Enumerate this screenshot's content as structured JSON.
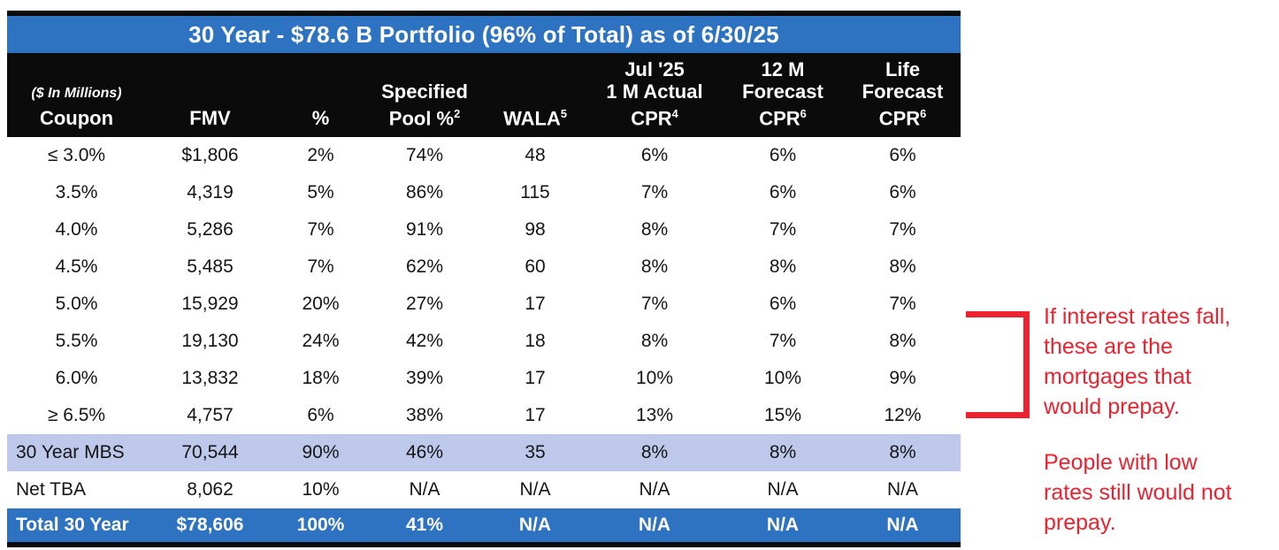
{
  "table": {
    "title": "30 Year - $78.6 B Portfolio (96% of Total) as of 6/30/25",
    "columns": [
      {
        "id": "coupon",
        "note": "($ In Millions)",
        "label": "Coupon"
      },
      {
        "id": "fmv",
        "label": "FMV"
      },
      {
        "id": "pct-of-total",
        "label": "%"
      },
      {
        "id": "specified-pool-pct",
        "label": "Specified\nPool %^2"
      },
      {
        "id": "wala",
        "label": "WALA^5"
      },
      {
        "id": "jul-25-1m-actual-cpr",
        "label": "Jul '25\n1 M Actual\nCPR^4"
      },
      {
        "id": "12m-forecast-cpr",
        "label": "12 M\nForecast\nCPR^6"
      },
      {
        "id": "life-forecast-cpr",
        "label": "Life\nForecast\nCPR^6"
      }
    ],
    "rows": [
      {
        "cells": [
          "≤ 3.0%",
          "$1,806",
          "2%",
          "74%",
          "48",
          "6%",
          "6%",
          "6%"
        ]
      },
      {
        "cells": [
          "3.5%",
          "4,319",
          "5%",
          "86%",
          "115",
          "7%",
          "6%",
          "6%"
        ]
      },
      {
        "cells": [
          "4.0%",
          "5,286",
          "7%",
          "91%",
          "98",
          "8%",
          "7%",
          "7%"
        ]
      },
      {
        "cells": [
          "4.5%",
          "5,485",
          "7%",
          "62%",
          "60",
          "8%",
          "8%",
          "8%"
        ]
      },
      {
        "cells": [
          "5.0%",
          "15,929",
          "20%",
          "27%",
          "17",
          "7%",
          "6%",
          "7%"
        ]
      },
      {
        "cells": [
          "5.5%",
          "19,130",
          "24%",
          "42%",
          "18",
          "8%",
          "7%",
          "8%"
        ]
      },
      {
        "cells": [
          "6.0%",
          "13,832",
          "18%",
          "39%",
          "17",
          "10%",
          "10%",
          "9%"
        ]
      },
      {
        "cells": [
          "≥ 6.5%",
          "4,757",
          "6%",
          "38%",
          "17",
          "13%",
          "15%",
          "12%"
        ]
      }
    ],
    "summary_rows": [
      {
        "variant": "mbs",
        "cells": [
          "30 Year MBS",
          "70,544",
          "90%",
          "46%",
          "35",
          "8%",
          "8%",
          "8%"
        ]
      },
      {
        "variant": "net-tba",
        "cells": [
          "Net TBA",
          "8,062",
          "10%",
          "N/A",
          "N/A",
          "N/A",
          "N/A",
          "N/A"
        ]
      },
      {
        "variant": "total",
        "cells": [
          "Total 30 Year",
          "$78,606",
          "100%",
          "41%",
          "N/A",
          "N/A",
          "N/A",
          "N/A"
        ]
      }
    ]
  },
  "annotations": {
    "notes": [
      {
        "id": "note1",
        "lines": [
          "If interest rates fall,",
          "these are the",
          "mortgages that",
          "would prepay."
        ]
      },
      {
        "id": "note2",
        "lines": [
          "People with low",
          "rates still would not",
          "prepay."
        ]
      }
    ]
  },
  "colors": {
    "accent_blue": "#2d73c1",
    "row_highlight": "#bdc8ea",
    "annotation_red": "#eb222f",
    "header_black": "#0b0b0b"
  }
}
